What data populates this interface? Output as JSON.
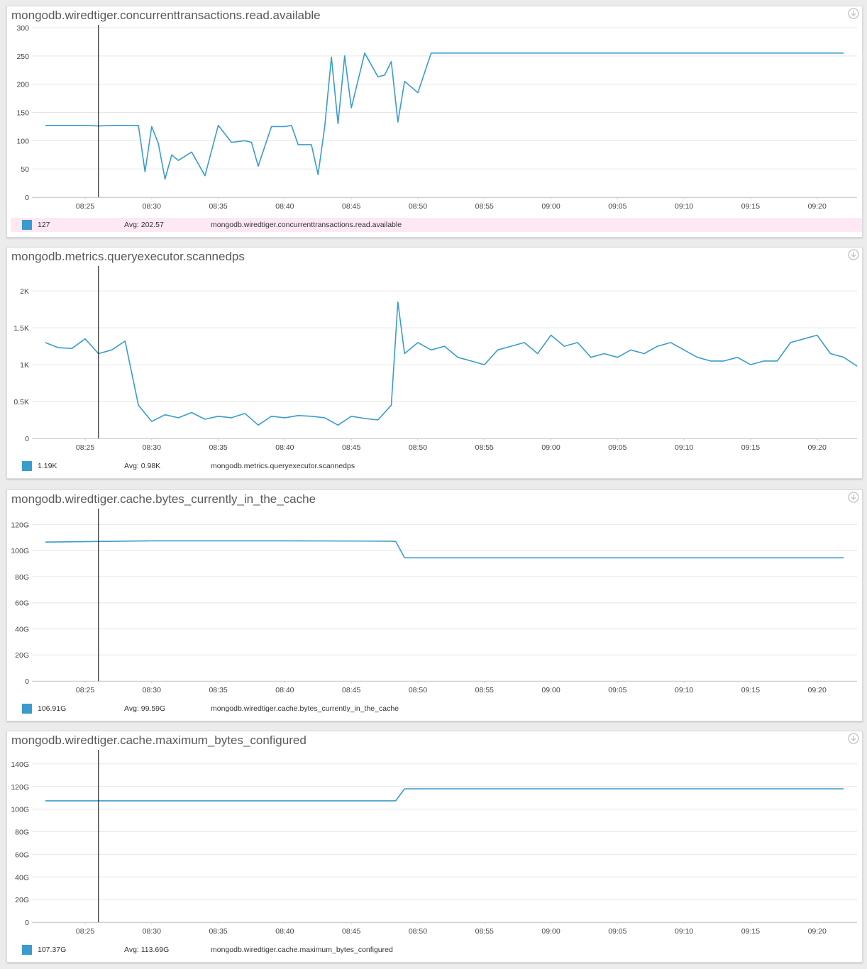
{
  "colors": {
    "series": "#3a9ccd",
    "grid": "#e6e6e6",
    "cursor": "#000000",
    "highlight_row": "#fde8f4"
  },
  "x_axis_times": [
    "08:25",
    "08:30",
    "08:35",
    "08:40",
    "08:45",
    "08:50",
    "08:55",
    "09:00",
    "09:05",
    "09:10",
    "09:15",
    "09:20"
  ],
  "panels": [
    {
      "title": "mongodb.wiredtiger.concurrenttransactions.read.available",
      "icon": "download-icon",
      "legend": {
        "value": "127",
        "avg": "Avg: 202.57",
        "name": "mongodb.wiredtiger.concurrenttransactions.read.available",
        "highlighted": true
      }
    },
    {
      "title": "mongodb.metrics.queryexecutor.scannedps",
      "icon": "download-icon",
      "legend": {
        "value": "1.19K",
        "avg": "Avg: 0.98K",
        "name": "mongodb.metrics.queryexecutor.scannedps",
        "highlighted": false
      }
    },
    {
      "title": "mongodb.wiredtiger.cache.bytes_currently_in_the_cache",
      "icon": "download-icon",
      "legend": {
        "value": "106.91G",
        "avg": "Avg: 99.59G",
        "name": "mongodb.wiredtiger.cache.bytes_currently_in_the_cache",
        "highlighted": false
      }
    },
    {
      "title": "mongodb.wiredtiger.cache.maximum_bytes_configured",
      "icon": "download-icon",
      "legend": {
        "value": "107.37G",
        "avg": "Avg: 113.69G",
        "name": "mongodb.wiredtiger.cache.maximum_bytes_configured",
        "highlighted": false
      }
    }
  ],
  "chart_data": [
    {
      "type": "line",
      "title": "mongodb.wiredtiger.concurrenttransactions.read.available",
      "x_range": [
        "08:21",
        "09:23"
      ],
      "cursor_x": "08:26",
      "ylim": [
        0,
        300
      ],
      "y_ticks": [
        "0",
        "50",
        "100",
        "150",
        "200",
        "250",
        "300"
      ],
      "y_tick_values": [
        0,
        50,
        100,
        150,
        200,
        250,
        300
      ],
      "grid": true,
      "series": [
        {
          "name": "mongodb.wiredtiger.concurrenttransactions.read.available",
          "x": [
            "08:22",
            "08:24",
            "08:25",
            "08:26",
            "08:27",
            "08:28",
            "08:29",
            "08:29:30",
            "08:30",
            "08:30:30",
            "08:31",
            "08:31:30",
            "08:32",
            "08:33",
            "08:34",
            "08:35",
            "08:36",
            "08:37",
            "08:37:30",
            "08:38",
            "08:39",
            "08:40",
            "08:40:30",
            "08:41",
            "08:42",
            "08:42:30",
            "08:43",
            "08:43:30",
            "08:44",
            "08:44:30",
            "08:45",
            "08:46",
            "08:47",
            "08:47:30",
            "08:48",
            "08:48:30",
            "08:49",
            "08:50",
            "08:51",
            "08:52",
            "08:53",
            "08:54",
            "08:55",
            "08:57",
            "09:00",
            "09:05",
            "09:10",
            "09:15",
            "09:18",
            "09:19",
            "09:20",
            "09:22"
          ],
          "y": [
            127,
            127,
            127,
            126,
            127,
            127,
            127,
            45,
            125,
            95,
            32,
            75,
            65,
            80,
            38,
            127,
            97,
            100,
            97,
            55,
            125,
            125,
            127,
            93,
            93,
            40,
            125,
            248,
            130,
            250,
            158,
            255,
            213,
            216,
            240,
            133,
            205,
            185,
            255,
            255,
            255,
            255,
            255,
            255,
            255,
            255,
            255,
            255,
            255,
            255,
            255,
            255
          ]
        }
      ]
    },
    {
      "type": "line",
      "title": "mongodb.metrics.queryexecutor.scannedps",
      "x_range": [
        "08:21",
        "09:23"
      ],
      "cursor_x": "08:26",
      "ylim": [
        0,
        2300
      ],
      "y_ticks": [
        "0",
        "0.5K",
        "1K",
        "1.5K",
        "2K"
      ],
      "y_tick_values": [
        0,
        500,
        1000,
        1500,
        2000
      ],
      "grid": true,
      "series": [
        {
          "name": "mongodb.metrics.queryexecutor.scannedps",
          "x": [
            "08:22",
            "08:23",
            "08:24",
            "08:25",
            "08:26",
            "08:27",
            "08:28",
            "08:29",
            "08:30",
            "08:31",
            "08:32",
            "08:33",
            "08:34",
            "08:35",
            "08:36",
            "08:37",
            "08:38",
            "08:39",
            "08:40",
            "08:41",
            "08:42",
            "08:43",
            "08:44",
            "08:45",
            "08:46",
            "08:47",
            "08:48",
            "08:48:30",
            "08:49",
            "08:50",
            "08:51",
            "08:52",
            "08:53",
            "08:54",
            "08:55",
            "08:56",
            "08:57",
            "08:58",
            "08:59",
            "09:00",
            "09:01",
            "09:02",
            "09:03",
            "09:04",
            "09:05",
            "09:06",
            "09:07",
            "09:08",
            "09:09",
            "09:10",
            "09:11",
            "09:12",
            "09:13",
            "09:14",
            "09:15",
            "09:16",
            "09:17",
            "09:18",
            "09:19",
            "09:20",
            "09:21",
            "09:22",
            "09:23"
          ],
          "y": [
            1300,
            1230,
            1220,
            1350,
            1150,
            1200,
            1320,
            450,
            230,
            320,
            280,
            350,
            260,
            300,
            280,
            340,
            180,
            300,
            280,
            310,
            300,
            280,
            180,
            300,
            270,
            250,
            450,
            1850,
            1150,
            1300,
            1200,
            1250,
            1100,
            1050,
            1000,
            1200,
            1250,
            1300,
            1150,
            1400,
            1250,
            1300,
            1100,
            1150,
            1100,
            1200,
            1150,
            1250,
            1300,
            1200,
            1100,
            1050,
            1050,
            1100,
            1000,
            1050,
            1050,
            1300,
            1350,
            1400,
            1150,
            1100,
            980
          ]
        }
      ]
    },
    {
      "type": "line",
      "title": "mongodb.wiredtiger.cache.bytes_currently_in_the_cache",
      "x_range": [
        "08:21",
        "09:23"
      ],
      "cursor_x": "08:26",
      "ylim": [
        0,
        130
      ],
      "y_ticks": [
        "0",
        "20G",
        "40G",
        "60G",
        "80G",
        "100G",
        "120G"
      ],
      "y_tick_values": [
        0,
        20,
        40,
        60,
        80,
        100,
        120
      ],
      "grid": true,
      "series": [
        {
          "name": "mongodb.wiredtiger.cache.bytes_currently_in_the_cache",
          "x": [
            "08:22",
            "08:26",
            "08:30",
            "08:40",
            "08:48",
            "08:48:20",
            "08:49",
            "09:00",
            "09:10",
            "09:22"
          ],
          "y": [
            106.5,
            107,
            107.5,
            107.5,
            107.2,
            107,
            94.5,
            94.5,
            94.5,
            94.5
          ]
        }
      ]
    },
    {
      "type": "line",
      "title": "mongodb.wiredtiger.cache.maximum_bytes_configured",
      "x_range": [
        "08:21",
        "09:23"
      ],
      "cursor_x": "08:26",
      "ylim": [
        0,
        150
      ],
      "y_ticks": [
        "0",
        "20G",
        "40G",
        "60G",
        "80G",
        "100G",
        "120G",
        "140G"
      ],
      "y_tick_values": [
        0,
        20,
        40,
        60,
        80,
        100,
        120,
        140
      ],
      "grid": true,
      "series": [
        {
          "name": "mongodb.wiredtiger.cache.maximum_bytes_configured",
          "x": [
            "08:22",
            "08:48:20",
            "08:49",
            "09:22"
          ],
          "y": [
            107.4,
            107.4,
            118,
            118
          ]
        }
      ]
    }
  ]
}
